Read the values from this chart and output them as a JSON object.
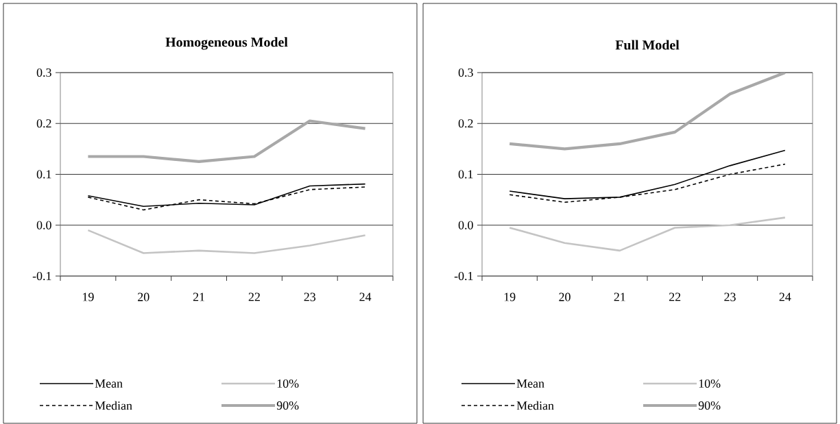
{
  "chart_data": [
    {
      "type": "line",
      "title": "Homogeneous Model",
      "categories": [
        "19",
        "20",
        "21",
        "22",
        "23",
        "24"
      ],
      "ylim": [
        -0.1,
        0.3
      ],
      "yticks": [
        {
          "value": -0.1,
          "label": "-0.1"
        },
        {
          "value": 0.0,
          "label": "0.0"
        },
        {
          "value": 0.1,
          "label": "0.1"
        },
        {
          "value": 0.2,
          "label": "0.2"
        },
        {
          "value": 0.3,
          "label": "0.3"
        }
      ],
      "grid": "y",
      "legend": "bottom",
      "series": [
        {
          "name": "Mean",
          "color": "#000000",
          "line_style": "solid",
          "values": [
            0.058,
            0.037,
            0.043,
            0.04,
            0.077,
            0.081
          ]
        },
        {
          "name": "Median",
          "color": "#000000",
          "line_style": "dashed",
          "values": [
            0.055,
            0.03,
            0.05,
            0.042,
            0.07,
            0.075
          ]
        },
        {
          "name": "10%",
          "color": "#c4c4c4",
          "line_style": "solid",
          "values": [
            -0.01,
            -0.055,
            -0.05,
            -0.055,
            -0.04,
            -0.02
          ]
        },
        {
          "name": "90%",
          "color": "#a8a8a8",
          "line_style": "solid",
          "values": [
            0.135,
            0.135,
            0.125,
            0.135,
            0.205,
            0.19
          ]
        }
      ]
    },
    {
      "type": "line",
      "title": "Full Model",
      "categories": [
        "19",
        "20",
        "21",
        "22",
        "23",
        "24"
      ],
      "ylim": [
        -0.1,
        0.3
      ],
      "yticks": [
        {
          "value": -0.1,
          "label": "-0.1"
        },
        {
          "value": 0.0,
          "label": "0.0"
        },
        {
          "value": 0.1,
          "label": "0.1"
        },
        {
          "value": 0.2,
          "label": "0.2"
        },
        {
          "value": 0.3,
          "label": "0.3"
        }
      ],
      "grid": "y",
      "legend": "bottom",
      "series": [
        {
          "name": "Mean",
          "color": "#000000",
          "line_style": "solid",
          "values": [
            0.067,
            0.052,
            0.055,
            0.08,
            0.117,
            0.147
          ]
        },
        {
          "name": "Median",
          "color": "#000000",
          "line_style": "dashed",
          "values": [
            0.06,
            0.045,
            0.055,
            0.07,
            0.1,
            0.12
          ]
        },
        {
          "name": "10%",
          "color": "#c4c4c4",
          "line_style": "solid",
          "values": [
            -0.005,
            -0.035,
            -0.05,
            -0.005,
            0.0,
            0.015
          ]
        },
        {
          "name": "90%",
          "color": "#a8a8a8",
          "line_style": "solid",
          "values": [
            0.16,
            0.15,
            0.16,
            0.183,
            0.258,
            0.3
          ]
        }
      ]
    }
  ]
}
